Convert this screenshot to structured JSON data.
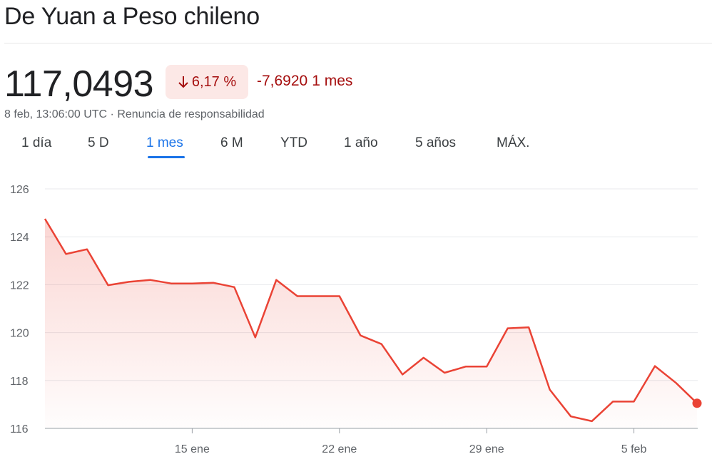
{
  "header": {
    "title": "De Yuan a Peso chileno"
  },
  "quote": {
    "price": "117,0493",
    "change_percent": "6,17 %",
    "change_abs": "-7,6920",
    "change_period": "1 mes",
    "timestamp": "8 feb, 13:06:00 UTC · ",
    "disclaimer": "Renuncia de responsabilidad",
    "down_color": "#a50e0e",
    "down_bg": "#fce8e6"
  },
  "tabs": [
    {
      "label": "1 día",
      "active": false
    },
    {
      "label": "5 D",
      "active": false
    },
    {
      "label": "1 mes",
      "active": true
    },
    {
      "label": "6 M",
      "active": false
    },
    {
      "label": "YTD",
      "active": false
    },
    {
      "label": "1 año",
      "active": false
    },
    {
      "label": "5 años",
      "active": false
    },
    {
      "label": "MÁX.",
      "active": false
    }
  ],
  "chart_data": {
    "type": "area",
    "title": "",
    "xlabel": "",
    "ylabel": "",
    "ylim": [
      116,
      126
    ],
    "yticks": [
      116,
      118,
      120,
      122,
      124,
      126
    ],
    "ytick_labels": [
      "116",
      "118",
      "120",
      "122",
      "124",
      "126"
    ],
    "xticks": [
      {
        "label": "15 ene",
        "x": "2024-01-15"
      },
      {
        "label": "22 ene",
        "x": "2024-01-22"
      },
      {
        "label": "29 ene",
        "x": "2024-01-29"
      },
      {
        "label": "5 feb",
        "x": "2024-02-05"
      }
    ],
    "line_color": "#ea4335",
    "grid": true,
    "series": [
      {
        "x": [
          "2024-01-08",
          "2024-01-09",
          "2024-01-10",
          "2024-01-11",
          "2024-01-12",
          "2024-01-13",
          "2024-01-14",
          "2024-01-15",
          "2024-01-16",
          "2024-01-17",
          "2024-01-18",
          "2024-01-19",
          "2024-01-20",
          "2024-01-21",
          "2024-01-22",
          "2024-01-23",
          "2024-01-24",
          "2024-01-25",
          "2024-01-26",
          "2024-01-27",
          "2024-01-28",
          "2024-01-29",
          "2024-01-30",
          "2024-01-31",
          "2024-02-01",
          "2024-02-02",
          "2024-02-03",
          "2024-02-04",
          "2024-02-05",
          "2024-02-06",
          "2024-02-07",
          "2024-02-08"
        ],
        "values": [
          124.75,
          123.28,
          123.48,
          121.98,
          122.12,
          122.2,
          122.05,
          122.05,
          122.08,
          121.9,
          119.8,
          122.2,
          121.52,
          121.52,
          121.52,
          119.88,
          119.52,
          118.25,
          118.95,
          118.32,
          118.58,
          118.58,
          120.18,
          120.22,
          117.62,
          116.5,
          116.3,
          117.12,
          117.12,
          118.6,
          117.9,
          117.05
        ]
      }
    ]
  }
}
